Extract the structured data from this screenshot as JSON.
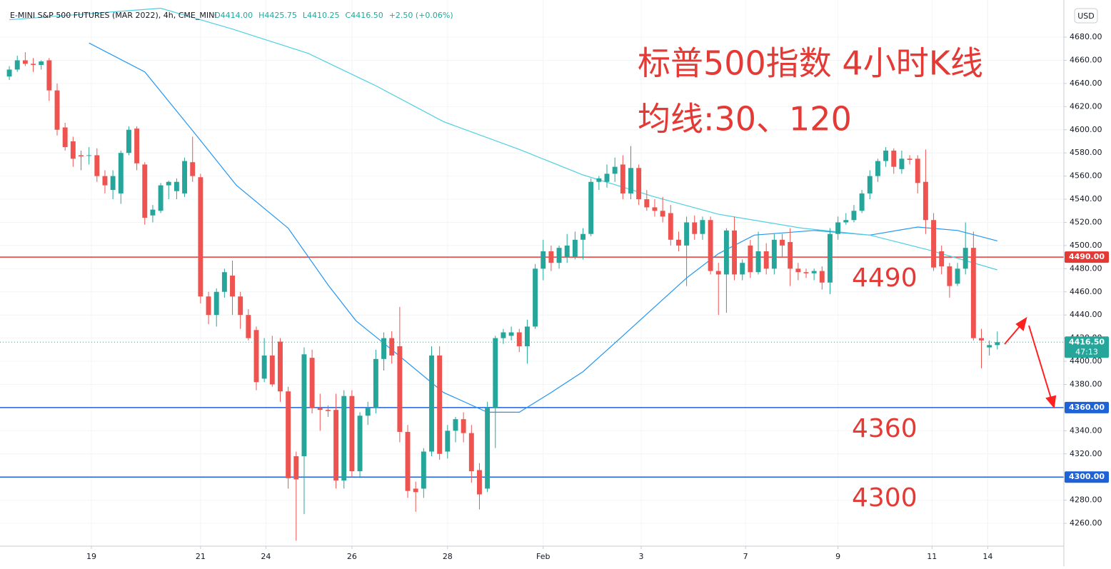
{
  "chart_data": {
    "type": "candlestick",
    "title": "E-MINI S&P 500 FUTURES (MAR 2022), 4h, CME_MINI",
    "legend_values": [
      "O4414.00",
      "H4425.75",
      "L4410.25",
      "C4416.50",
      "+2.50 (+0.06%)"
    ],
    "currency": "USD",
    "annotations": [
      "标普500指数 4小时K线",
      "均线:30、120"
    ],
    "up_color": "#26a69a",
    "down_color": "#ef5350",
    "ohlc": [
      [
        4646,
        4655,
        4643,
        4652
      ],
      [
        4652,
        4664,
        4650,
        4660
      ],
      [
        4660,
        4667,
        4655,
        4657
      ],
      [
        4657,
        4662,
        4650,
        4656
      ],
      [
        4656,
        4660,
        4652,
        4659
      ],
      [
        4660,
        4662,
        4625,
        4634
      ],
      [
        4634,
        4640,
        4595,
        4600
      ],
      [
        4602,
        4606,
        4582,
        4585
      ],
      [
        4590,
        4594,
        4568,
        4575
      ],
      [
        4578,
        4582,
        4565,
        4577
      ],
      [
        4578,
        4585,
        4570,
        4578
      ],
      [
        4578,
        4584,
        4555,
        4560
      ],
      [
        4560,
        4565,
        4545,
        4552
      ],
      [
        4548,
        4565,
        4540,
        4560
      ],
      [
        4545,
        4582,
        4536,
        4580
      ],
      [
        4580,
        4603,
        4578,
        4600
      ],
      [
        4601,
        4603,
        4565,
        4571
      ],
      [
        4570,
        4572,
        4518,
        4524
      ],
      [
        4526,
        4535,
        4520,
        4531
      ],
      [
        4530,
        4554,
        4528,
        4552
      ],
      [
        4552,
        4556,
        4540,
        4555
      ],
      [
        4547,
        4558,
        4540,
        4555
      ],
      [
        4545,
        4576,
        4542,
        4573
      ],
      [
        4572,
        4594,
        4555,
        4560
      ],
      [
        4559,
        4562,
        4450,
        4456
      ],
      [
        4456,
        4460,
        4432,
        4440
      ],
      [
        4440,
        4463,
        4430,
        4460
      ],
      [
        4460,
        4480,
        4455,
        4477
      ],
      [
        4474,
        4487,
        4440,
        4456
      ],
      [
        4456,
        4460,
        4428,
        4440
      ],
      [
        4440,
        4445,
        4418,
        4420
      ],
      [
        4427,
        4430,
        4375,
        4382
      ],
      [
        4385,
        4420,
        4382,
        4405
      ],
      [
        4405,
        4422,
        4378,
        4380
      ],
      [
        4417,
        4420,
        4365,
        4374
      ],
      [
        4374,
        4378,
        4290,
        4299
      ],
      [
        4318,
        4322,
        4245,
        4298
      ],
      [
        4318,
        4412,
        4268,
        4406
      ],
      [
        4403,
        4410,
        4355,
        4360
      ],
      [
        4360,
        4372,
        4340,
        4358
      ],
      [
        4358,
        4362,
        4352,
        4357
      ],
      [
        4358,
        4372,
        4290,
        4297
      ],
      [
        4297,
        4375,
        4290,
        4370
      ],
      [
        4370,
        4375,
        4300,
        4305
      ],
      [
        4305,
        4356,
        4300,
        4353
      ],
      [
        4353,
        4365,
        4345,
        4360
      ],
      [
        4360,
        4410,
        4355,
        4402
      ],
      [
        4402,
        4425,
        4392,
        4420
      ],
      [
        4420,
        4426,
        4398,
        4405
      ],
      [
        4413,
        4447,
        4330,
        4339
      ],
      [
        4339,
        4345,
        4282,
        4288
      ],
      [
        4290,
        4296,
        4270,
        4287
      ],
      [
        4290,
        4325,
        4282,
        4322
      ],
      [
        4322,
        4413,
        4318,
        4405
      ],
      [
        4405,
        4413,
        4315,
        4320
      ],
      [
        4322,
        4345,
        4316,
        4340
      ],
      [
        4340,
        4352,
        4330,
        4350
      ],
      [
        4350,
        4356,
        4330,
        4338
      ],
      [
        4338,
        4345,
        4295,
        4305
      ],
      [
        4306,
        4312,
        4272,
        4285
      ],
      [
        4290,
        4365,
        4287,
        4360
      ],
      [
        4360,
        4422,
        4325,
        4420
      ],
      [
        4420,
        4428,
        4415,
        4425
      ],
      [
        4422,
        4430,
        4418,
        4425
      ],
      [
        4425,
        4428,
        4408,
        4413
      ],
      [
        4413,
        4436,
        4398,
        4430
      ],
      [
        4430,
        4484,
        4428,
        4480
      ],
      [
        4480,
        4505,
        4470,
        4495
      ],
      [
        4495,
        4500,
        4478,
        4485
      ],
      [
        4485,
        4500,
        4480,
        4498
      ],
      [
        4490,
        4510,
        4485,
        4500
      ],
      [
        4490,
        4512,
        4488,
        4505
      ],
      [
        4505,
        4515,
        4488,
        4510
      ],
      [
        4510,
        4558,
        4508,
        4555
      ],
      [
        4555,
        4560,
        4548,
        4558
      ],
      [
        4555,
        4570,
        4550,
        4562
      ],
      [
        4562,
        4576,
        4555,
        4568
      ],
      [
        4570,
        4578,
        4540,
        4545
      ],
      [
        4545,
        4586,
        4540,
        4567
      ],
      [
        4567,
        4570,
        4535,
        4540
      ],
      [
        4540,
        4548,
        4530,
        4533
      ],
      [
        4533,
        4540,
        4525,
        4530
      ],
      [
        4530,
        4542,
        4520,
        4525
      ],
      [
        4528,
        4535,
        4500,
        4505
      ],
      [
        4505,
        4512,
        4495,
        4500
      ],
      [
        4500,
        4525,
        4465,
        4520
      ],
      [
        4520,
        4526,
        4505,
        4510
      ],
      [
        4510,
        4525,
        4505,
        4522
      ],
      [
        4522,
        4525,
        4475,
        4478
      ],
      [
        4478,
        4485,
        4440,
        4475
      ],
      [
        4475,
        4515,
        4442,
        4513
      ],
      [
        4513,
        4525,
        4470,
        4475
      ],
      [
        4475,
        4488,
        4470,
        4485
      ],
      [
        4500,
        4505,
        4472,
        4477
      ],
      [
        4477,
        4512,
        4475,
        4495
      ],
      [
        4495,
        4502,
        4475,
        4480
      ],
      [
        4480,
        4510,
        4475,
        4505
      ],
      [
        4505,
        4510,
        4490,
        4500
      ],
      [
        4503,
        4515,
        4465,
        4480
      ],
      [
        4480,
        4485,
        4470,
        4477
      ],
      [
        4477,
        4480,
        4472,
        4476
      ],
      [
        4476,
        4480,
        4470,
        4478
      ],
      [
        4478,
        4482,
        4462,
        4468
      ],
      [
        4468,
        4515,
        4458,
        4510
      ],
      [
        4510,
        4525,
        4505,
        4520
      ],
      [
        4520,
        4528,
        4518,
        4522
      ],
      [
        4522,
        4535,
        4520,
        4530
      ],
      [
        4530,
        4548,
        4528,
        4545
      ],
      [
        4545,
        4565,
        4540,
        4560
      ],
      [
        4560,
        4575,
        4555,
        4573
      ],
      [
        4573,
        4585,
        4568,
        4582
      ],
      [
        4582,
        4584,
        4562,
        4568
      ],
      [
        4566,
        4582,
        4562,
        4575
      ],
      [
        4575,
        4578,
        4570,
        4574
      ],
      [
        4575,
        4578,
        4545,
        4554
      ],
      [
        4555,
        4583,
        4510,
        4522
      ],
      [
        4522,
        4528,
        4478,
        4481
      ],
      [
        4495,
        4500,
        4475,
        4482
      ],
      [
        4482,
        4485,
        4455,
        4465
      ],
      [
        4467,
        4485,
        4465,
        4480
      ],
      [
        4480,
        4520,
        4475,
        4498
      ],
      [
        4498,
        4512,
        4418,
        4420
      ],
      [
        4420,
        4428,
        4394,
        4418
      ],
      [
        4412,
        4418,
        4405,
        4414
      ],
      [
        4414,
        4425.75,
        4410.25,
        4416.5
      ]
    ],
    "series": [
      {
        "color": "#2196f3",
        "x": [
          10,
          17,
          23.5,
          28.5,
          35,
          40,
          43.5,
          48,
          54.5,
          60,
          64,
          68,
          72,
          77,
          81,
          85,
          89,
          93.5,
          101,
          108,
          114,
          119,
          124
        ],
        "values": [
          4675,
          4650,
          4595,
          4552,
          4515,
          4466,
          4435,
          4410,
          4373,
          4356,
          4356,
          4373,
          4391,
          4422,
          4447,
          4472,
          4493,
          4509,
          4513,
          4509,
          4516,
          4513,
          4504
        ]
      },
      {
        "color": "#4dd0e1",
        "x": [
          0,
          19,
          28,
          37.5,
          46,
          54.5,
          64,
          72,
          81,
          89,
          99.5,
          108,
          115.5,
          124
        ],
        "values": [
          4695,
          4705,
          4687,
          4666,
          4638,
          4607,
          4583,
          4561,
          4542,
          4527,
          4515,
          4509,
          4496,
          4479
        ]
      }
    ],
    "levels": [
      {
        "value": 4490,
        "label": "4490.00",
        "note": "4490",
        "color": "#e53935"
      },
      {
        "value": 4360,
        "label": "4360.00",
        "note": "4360",
        "color": "#1e62d8"
      },
      {
        "value": 4300,
        "label": "4300.00",
        "note": "4300",
        "color": "#1e62d8"
      }
    ],
    "last_price": {
      "value": 4416.5,
      "label": "4416.50",
      "countdown": "47:13",
      "color": "#26a69a"
    },
    "xlim": [
      -1.17,
      132.35
    ],
    "ylim": [
      4240.3,
      4712.1
    ],
    "xticks": [
      {
        "value": 10.3,
        "label": "19"
      },
      {
        "value": 24,
        "label": "21"
      },
      {
        "value": 32.2,
        "label": "24"
      },
      {
        "value": 43,
        "label": "26"
      },
      {
        "value": 55,
        "label": "28"
      },
      {
        "value": 67,
        "label": "Feb"
      },
      {
        "value": 79.3,
        "label": "3"
      },
      {
        "value": 92.4,
        "label": "7"
      },
      {
        "value": 104,
        "label": "9"
      },
      {
        "value": 115.8,
        "label": "11"
      },
      {
        "value": 122.8,
        "label": "14"
      }
    ],
    "yticks": [
      {
        "value": 4260,
        "label": "4260.00"
      },
      {
        "value": 4280,
        "label": "4280.00"
      },
      {
        "value": 4300,
        "label": "4300.00"
      },
      {
        "value": 4320,
        "label": "4320.00"
      },
      {
        "value": 4340,
        "label": "4340.00"
      },
      {
        "value": 4360,
        "label": "4360.00"
      },
      {
        "value": 4380,
        "label": "4380.00"
      },
      {
        "value": 4400,
        "label": "4400.00"
      },
      {
        "value": 4420,
        "label": "4420.00"
      },
      {
        "value": 4440,
        "label": "4440.00"
      },
      {
        "value": 4460,
        "label": "4460.00"
      },
      {
        "value": 4480,
        "label": "4480.00"
      },
      {
        "value": 4500,
        "label": "4500.00"
      },
      {
        "value": 4520,
        "label": "4520.00"
      },
      {
        "value": 4540,
        "label": "4540.00"
      },
      {
        "value": 4560,
        "label": "4560.00"
      },
      {
        "value": 4580,
        "label": "4580.00"
      },
      {
        "value": 4600,
        "label": "4600.00"
      },
      {
        "value": 4620,
        "label": "4620.00"
      },
      {
        "value": 4640,
        "label": "4640.00"
      },
      {
        "value": 4660,
        "label": "4660.00"
      },
      {
        "value": 4680,
        "label": "4680.00"
      }
    ]
  }
}
